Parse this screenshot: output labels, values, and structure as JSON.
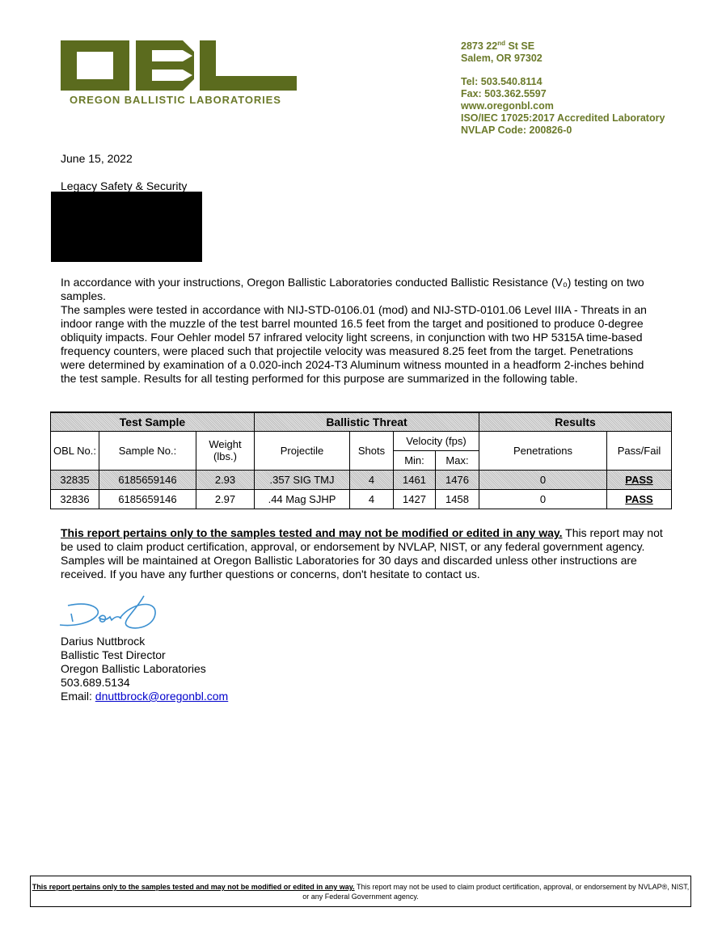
{
  "letterhead": {
    "logo_text": "OBL",
    "org_name": "OREGON BALLISTIC LABORATORIES",
    "brand_color": "#5b6b1e",
    "address_line1_pre": "2873 22",
    "address_line1_sup": "nd",
    "address_line1_post": " St SE",
    "address_line2": "Salem, OR 97302",
    "tel": "Tel: 503.540.8114",
    "fax": "Fax: 503.362.5597",
    "web": "www.oregonbl.com",
    "iso": "ISO/IEC 17025:2017 Accredited Laboratory",
    "nvlap": "NVLAP Code: 200826-0"
  },
  "date": "June 15, 2022",
  "recipient": "Legacy Safety & Security",
  "body": {
    "p1": "In accordance with your instructions, Oregon Ballistic Laboratories conducted Ballistic Resistance (V₀) testing on two samples.",
    "p2": "The samples were tested in accordance with NIJ-STD-0106.01 (mod) and NIJ-STD-0101.06 Level IIIA - Threats in an indoor range with the muzzle of the test barrel mounted 16.5 feet from the target and positioned to produce 0-degree obliquity impacts. Four Oehler model 57 infrared velocity light screens, in conjunction with two HP 5315A time-based frequency counters, were placed such that projectile velocity was measured 8.25 feet from the target. Penetrations were determined by examination of a 0.020-inch 2024-T3 Aluminum witness mounted in a headform 2-inches behind the test sample. Results for all testing performed for this purpose are summarized in the following table."
  },
  "table": {
    "groups": [
      "Test Sample",
      "Ballistic Threat",
      "Results"
    ],
    "headers": {
      "obl": "OBL No.:",
      "sample": "Sample No.:",
      "weight": "Weight (lbs.)",
      "projectile": "Projectile",
      "shots": "Shots",
      "velocity": "Velocity (fps)",
      "min": "Min:",
      "max": "Max:",
      "penetrations": "Penetrations",
      "passfail": "Pass/Fail"
    },
    "rows": [
      {
        "obl": "32835",
        "sample": "6185659146",
        "weight": "2.93",
        "projectile": ".357 SIG TMJ",
        "shots": "4",
        "min": "1461",
        "max": "1476",
        "penetrations": "0",
        "result": "PASS"
      },
      {
        "obl": "32836",
        "sample": "6185659146",
        "weight": "2.97",
        "projectile": ".44 Mag SJHP",
        "shots": "4",
        "min": "1427",
        "max": "1458",
        "penetrations": "0",
        "result": "PASS"
      }
    ]
  },
  "notice": {
    "bold": "This report pertains only to the samples tested and may not be modified or edited in any way.",
    "rest": " This report may not be used to claim product certification, approval, or endorsement by NVLAP, NIST, or any federal government agency. Samples will be maintained at Oregon Ballistic Laboratories for 30 days and discarded unless other instructions are received. If you have any further questions or concerns, don't hesitate to contact us."
  },
  "signer": {
    "name": "Darius Nuttbrock",
    "title": "Ballistic Test Director",
    "org": "Oregon Ballistic Laboratories",
    "phone": "503.689.5134",
    "email_label": "Email: ",
    "email": "dnuttbrock@oregonbl.com",
    "signature_color": "#3a8fd0"
  },
  "footer": {
    "bold": "This report pertains only to the samples tested and may not be modified or edited in any way.",
    "rest": " This report may not be used to claim product certification, approval, or endorsement by NVLAP®, NIST, or any Federal Government agency."
  }
}
